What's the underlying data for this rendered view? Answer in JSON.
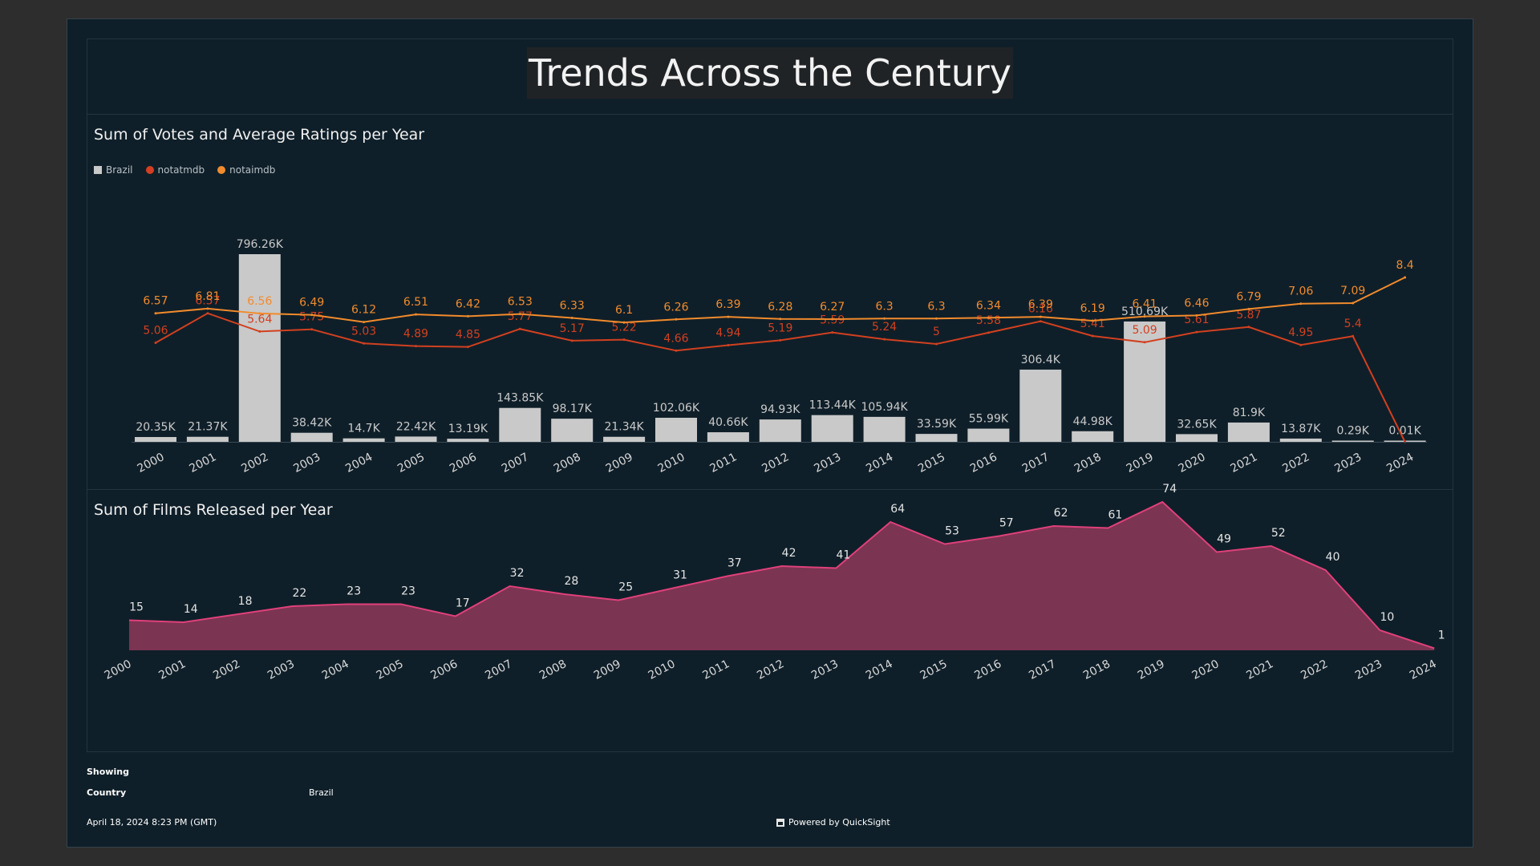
{
  "dashboard": {
    "title": "Trends Across the Century"
  },
  "colors": {
    "background": "#0f1f29",
    "bars": "#c9c9c9",
    "notatmdb": "#d2401f",
    "notaimdb": "#f28b2c",
    "area_fill": "#7b3452",
    "area_line": "#e0407a"
  },
  "chart_data": [
    {
      "type": "bar+line",
      "title": "Sum of Votes and Average Ratings per Year",
      "legend_position": "top-left",
      "legend": [
        {
          "label": "Brazil",
          "marker": "square",
          "color": "#c9c9c9"
        },
        {
          "label": "notatmdb",
          "marker": "dot",
          "color": "#d2401f"
        },
        {
          "label": "notaimdb",
          "marker": "dot",
          "color": "#f28b2c"
        }
      ],
      "categories": [
        "2000",
        "2001",
        "2002",
        "2003",
        "2004",
        "2005",
        "2006",
        "2007",
        "2008",
        "2009",
        "2010",
        "2011",
        "2012",
        "2013",
        "2014",
        "2015",
        "2016",
        "2017",
        "2018",
        "2019",
        "2020",
        "2021",
        "2022",
        "2023",
        "2024"
      ],
      "bars": {
        "name": "Brazil",
        "values": [
          20350,
          21370,
          796260,
          38420,
          14700,
          22420,
          13190,
          143850,
          98170,
          21340,
          102060,
          40660,
          94930,
          113440,
          105940,
          33590,
          55990,
          306400,
          44980,
          510690,
          32650,
          81900,
          13870,
          290,
          10
        ],
        "labels": [
          "20.35K",
          "21.37K",
          "796.26K",
          "38.42K",
          "14.7K",
          "22.42K",
          "13.19K",
          "143.85K",
          "98.17K",
          "21.34K",
          "102.06K",
          "40.66K",
          "94.93K",
          "113.44K",
          "105.94K",
          "33.59K",
          "55.99K",
          "306.4K",
          "44.98K",
          "510.69K",
          "32.65K",
          "81.9K",
          "13.87K",
          "0.29K",
          "0.01K"
        ]
      },
      "lines": [
        {
          "name": "notatmdb",
          "values": [
            5.06,
            6.57,
            5.64,
            5.75,
            5.03,
            4.89,
            4.85,
            5.77,
            5.17,
            5.22,
            4.66,
            4.94,
            5.19,
            5.59,
            5.24,
            5,
            5.58,
            6.16,
            5.41,
            5.09,
            5.61,
            5.87,
            4.95,
            5.4,
            0
          ],
          "labels": [
            "5.06",
            "6.57",
            "5.64",
            "5.75",
            "5.03",
            "4.89",
            "4.85",
            "5.77",
            "5.17",
            "5.22",
            "4.66",
            "4.94",
            "5.19",
            "5.59",
            "5.24",
            "5",
            "5.58",
            "6.16",
            "5.41",
            "5.09",
            "5.61",
            "5.87",
            "4.95",
            "5.4",
            ""
          ]
        },
        {
          "name": "notaimdb",
          "values": [
            6.57,
            6.81,
            6.56,
            6.49,
            6.12,
            6.51,
            6.42,
            6.53,
            6.33,
            6.1,
            6.26,
            6.39,
            6.28,
            6.27,
            6.3,
            6.3,
            6.34,
            6.39,
            6.19,
            6.41,
            6.46,
            6.79,
            7.06,
            7.09,
            8.4
          ],
          "labels": [
            "6.57",
            "6.81",
            "6.56",
            "6.49",
            "6.12",
            "6.51",
            "6.42",
            "6.53",
            "6.33",
            "6.1",
            "6.26",
            "6.39",
            "6.28",
            "6.27",
            "6.3",
            "6.3",
            "6.34",
            "6.39",
            "6.19",
            "6.41",
            "6.46",
            "6.79",
            "7.06",
            "7.09",
            "8.4"
          ]
        }
      ],
      "grid": false
    },
    {
      "type": "area",
      "title": "Sum of Films Released per Year",
      "categories": [
        "2000",
        "2001",
        "2002",
        "2003",
        "2004",
        "2005",
        "2006",
        "2007",
        "2008",
        "2009",
        "2010",
        "2011",
        "2012",
        "2013",
        "2014",
        "2015",
        "2016",
        "2017",
        "2018",
        "2019",
        "2020",
        "2021",
        "2022",
        "2023",
        "2024"
      ],
      "series": [
        {
          "values": [
            15,
            14,
            18,
            22,
            23,
            23,
            17,
            32,
            28,
            25,
            31,
            37,
            42,
            41,
            64,
            53,
            57,
            62,
            61,
            74,
            49,
            52,
            40,
            10,
            1
          ]
        }
      ],
      "grid": false
    }
  ],
  "footer": {
    "showing_label": "Showing",
    "country_label": "Country",
    "country_value": "Brazil",
    "timestamp": "April 18, 2024 8:23 PM (GMT)",
    "powered_by": "Powered by QuickSight"
  }
}
